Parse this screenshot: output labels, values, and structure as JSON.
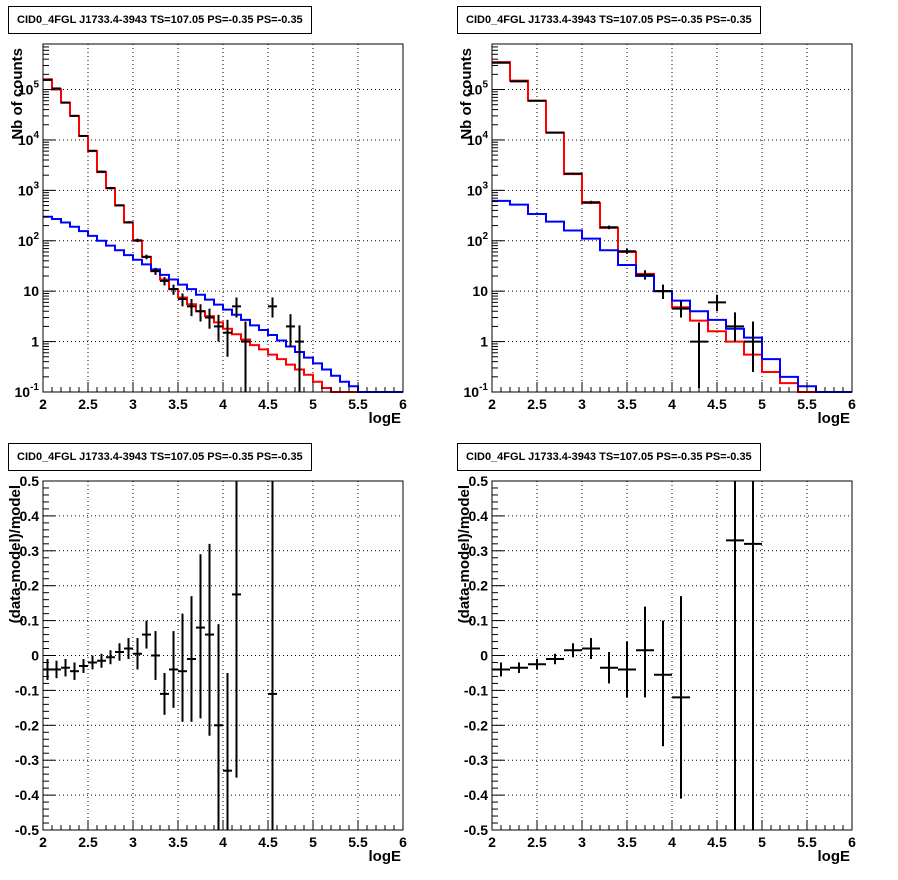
{
  "colors": {
    "total_model": "#ff0000",
    "source_model": "#0000ff",
    "data": "#000000",
    "axis": "#000000",
    "grid": "#000000"
  },
  "chart_data": [
    {
      "type": "line",
      "title": "CID0_4FGL J1733.4-3943 TS=107.05 PS=-0.35 PS=-0.35",
      "xlabel": "logE",
      "ylabel": "Nb of counts",
      "log_y": true,
      "grid": true,
      "xlim": [
        2,
        6
      ],
      "ylim": [
        0.1,
        800000
      ],
      "x_ticks": [
        "2",
        "2.5",
        "3",
        "3.5",
        "4",
        "4.5",
        "5",
        "5.5",
        "6"
      ],
      "y_ticks": [
        "10^-1",
        "1",
        "10",
        "10^2",
        "10^3",
        "10^4",
        "10^5"
      ],
      "bin_edges": [
        2.0,
        2.1,
        2.2,
        2.3,
        2.4,
        2.5,
        2.6,
        2.7,
        2.8,
        2.9,
        3.0,
        3.1,
        3.2,
        3.3,
        3.4,
        3.5,
        3.6,
        3.7,
        3.8,
        3.9,
        4.0,
        4.1,
        4.2,
        4.3,
        4.4,
        4.5,
        4.6,
        4.7,
        4.8,
        4.9,
        5.0,
        5.1,
        5.2,
        5.3,
        5.4,
        5.5,
        5.6,
        5.7,
        5.8,
        5.9,
        6.0
      ],
      "series": [
        {
          "kind": "step",
          "color": "red",
          "values": [
            160000,
            100000,
            55000,
            30000,
            12000,
            6000,
            2300,
            1100,
            500,
            230,
            100,
            48,
            25,
            17,
            11,
            7.5,
            5.5,
            4,
            3.2,
            2.4,
            1.8,
            1.4,
            1.1,
            0.85,
            0.7,
            0.55,
            0.45,
            0.35,
            0.28,
            0.22,
            0.16,
            0.12,
            0.1,
            0.1,
            0.1,
            0.1,
            0.1,
            0.1,
            0.1,
            0.1
          ]
        },
        {
          "kind": "step",
          "color": "blue",
          "values": [
            300,
            270,
            230,
            190,
            155,
            125,
            100,
            80,
            65,
            52,
            42,
            34,
            27,
            21,
            17,
            13.5,
            11,
            8.5,
            6.8,
            5.4,
            4.3,
            3.4,
            2.7,
            2.1,
            1.7,
            1.35,
            1.05,
            0.8,
            0.62,
            0.48,
            0.37,
            0.28,
            0.21,
            0.16,
            0.13,
            0.1,
            0.1,
            0.1,
            0.1,
            0.1
          ]
        },
        {
          "kind": "points",
          "color": "black",
          "x": [
            2.05,
            2.15,
            2.25,
            2.35,
            2.45,
            2.55,
            2.65,
            2.75,
            2.85,
            2.95,
            3.05,
            3.15,
            3.25,
            3.35,
            3.45,
            3.55,
            3.65,
            3.75,
            3.85,
            3.95,
            4.05,
            4.15,
            4.25,
            4.55,
            4.75,
            4.85
          ],
          "y": [
            155000,
            105000,
            55000,
            30000,
            12000,
            6100,
            2350,
            1110,
            505,
            232,
            102,
            48,
            25,
            16,
            11,
            7,
            5,
            4,
            3,
            2,
            1.5,
            5,
            1,
            5,
            2,
            1
          ],
          "y_low": [
            150000,
            100000,
            53000,
            29000,
            11600,
            5900,
            2250,
            1050,
            480,
            220,
            94,
            43,
            21,
            13,
            8.5,
            5,
            3.2,
            2.5,
            1.8,
            1,
            0.5,
            3,
            0.1,
            3,
            0.8,
            0.1
          ],
          "y_high": [
            160000,
            110000,
            57000,
            31000,
            12400,
            6300,
            2450,
            1170,
            530,
            245,
            110,
            53,
            29,
            19,
            13.5,
            9,
            7,
            5.5,
            4.5,
            3.4,
            2.7,
            7.5,
            2.5,
            7.5,
            3.5,
            2.1
          ],
          "half_width": 0.05
        }
      ]
    },
    {
      "type": "line",
      "title": "CID0_4FGL J1733.4-3943 TS=107.05 PS=-0.35 PS=-0.35",
      "xlabel": "logE",
      "ylabel": "Nb of counts",
      "log_y": true,
      "grid": true,
      "xlim": [
        2,
        6
      ],
      "ylim": [
        0.1,
        800000
      ],
      "x_ticks": [
        "2",
        "2.5",
        "3",
        "3.5",
        "4",
        "4.5",
        "5",
        "5.5",
        "6"
      ],
      "y_ticks": [
        "10^-1",
        "1",
        "10",
        "10^2",
        "10^3",
        "10^4",
        "10^5"
      ],
      "bin_edges": [
        2.0,
        2.2,
        2.4,
        2.6,
        2.8,
        3.0,
        3.2,
        3.4,
        3.6,
        3.8,
        4.0,
        4.2,
        4.4,
        4.6,
        4.8,
        5.0,
        5.2,
        5.4,
        5.6,
        5.8,
        6.0
      ],
      "series": [
        {
          "kind": "step",
          "color": "red",
          "values": [
            350000,
            150000,
            60000,
            14000,
            2100,
            560,
            180,
            60,
            22,
            10,
            4.8,
            2.6,
            1.6,
            1.0,
            0.55,
            0.25,
            0.15,
            0.1,
            0.1,
            0.1
          ]
        },
        {
          "kind": "step",
          "color": "blue",
          "values": [
            620,
            520,
            340,
            240,
            160,
            110,
            65,
            33,
            20,
            10,
            6.5,
            4,
            2.7,
            1.8,
            1.2,
            0.45,
            0.2,
            0.13,
            0.1,
            0.1
          ]
        },
        {
          "kind": "points",
          "color": "black",
          "x": [
            2.1,
            2.3,
            2.5,
            2.7,
            2.9,
            3.1,
            3.3,
            3.5,
            3.7,
            3.9,
            4.1,
            4.3,
            4.5,
            4.7,
            4.9
          ],
          "y": [
            340000,
            145000,
            60000,
            14000,
            2150,
            580,
            185,
            62,
            21,
            10,
            4.5,
            1,
            6,
            2,
            1
          ],
          "y_low": [
            335000,
            142000,
            59000,
            13700,
            2050,
            540,
            170,
            55,
            17,
            7,
            3,
            0.12,
            4,
            1,
            0.25
          ],
          "y_high": [
            345000,
            148000,
            61000,
            14300,
            2250,
            620,
            200,
            70,
            26,
            13.5,
            6.5,
            2.4,
            8.5,
            3.8,
            2.5
          ],
          "half_width": 0.1
        }
      ]
    },
    {
      "type": "scatter",
      "title": "CID0_4FGL J1733.4-3943 TS=107.05 PS=-0.35 PS=-0.35",
      "xlabel": "logE",
      "ylabel": "(data-model)/model",
      "log_y": false,
      "grid": true,
      "xlim": [
        2,
        6
      ],
      "ylim": [
        -0.5,
        0.5
      ],
      "x_ticks": [
        "2",
        "2.5",
        "3",
        "3.5",
        "4",
        "4.5",
        "5",
        "5.5",
        "6"
      ],
      "y_ticks": [
        "-0.5",
        "-0.4",
        "-0.3",
        "-0.2",
        "-0.1",
        "0",
        "0.1",
        "0.2",
        "0.3",
        "0.4",
        "0.5"
      ],
      "series": [
        {
          "kind": "points",
          "color": "black",
          "x": [
            2.05,
            2.15,
            2.25,
            2.35,
            2.45,
            2.55,
            2.65,
            2.75,
            2.85,
            2.95,
            3.05,
            3.15,
            3.25,
            3.35,
            3.45,
            3.55,
            3.65,
            3.75,
            3.85,
            3.95,
            4.05,
            4.15,
            4.55
          ],
          "y": [
            -0.04,
            -0.04,
            -0.035,
            -0.045,
            -0.03,
            -0.02,
            -0.015,
            -0.005,
            0.01,
            0.02,
            0.005,
            0.06,
            0.0,
            -0.11,
            -0.04,
            -0.045,
            -0.01,
            0.08,
            0.06,
            -0.2,
            -0.33,
            0.175,
            -0.11
          ],
          "y_low": [
            -0.07,
            -0.065,
            -0.06,
            -0.07,
            -0.05,
            -0.04,
            -0.035,
            -0.025,
            -0.015,
            -0.01,
            -0.04,
            0.02,
            -0.07,
            -0.17,
            -0.15,
            -0.19,
            -0.19,
            -0.18,
            -0.23,
            -0.5,
            -0.5,
            -0.35,
            -0.5
          ],
          "y_high": [
            -0.01,
            -0.015,
            -0.01,
            -0.02,
            -0.01,
            0.0,
            0.005,
            0.015,
            0.035,
            0.05,
            0.05,
            0.1,
            0.07,
            -0.05,
            0.07,
            0.12,
            0.17,
            0.29,
            0.32,
            0.09,
            -0.05,
            0.5,
            0.5
          ],
          "half_width": 0.05
        }
      ]
    },
    {
      "type": "scatter",
      "title": "CID0_4FGL J1733.4-3943 TS=107.05 PS=-0.35 PS=-0.35",
      "xlabel": "logE",
      "ylabel": "(data-model)/model",
      "log_y": false,
      "grid": true,
      "xlim": [
        2,
        6
      ],
      "ylim": [
        -0.5,
        0.5
      ],
      "x_ticks": [
        "2",
        "2.5",
        "3",
        "3.5",
        "4",
        "4.5",
        "5",
        "5.5",
        "6"
      ],
      "y_ticks": [
        "-0.5",
        "-0.4",
        "-0.3",
        "-0.2",
        "-0.1",
        "0",
        "0.1",
        "0.2",
        "0.3",
        "0.4",
        "0.5"
      ],
      "series": [
        {
          "kind": "points",
          "color": "black",
          "x": [
            2.1,
            2.3,
            2.5,
            2.7,
            2.9,
            3.1,
            3.3,
            3.5,
            3.7,
            3.9,
            4.1,
            4.7,
            4.9
          ],
          "y": [
            -0.04,
            -0.035,
            -0.025,
            -0.01,
            0.015,
            0.02,
            -0.035,
            -0.04,
            0.015,
            -0.055,
            -0.12,
            0.33,
            0.32
          ],
          "y_low": [
            -0.06,
            -0.05,
            -0.04,
            -0.025,
            -0.005,
            -0.01,
            -0.08,
            -0.12,
            -0.12,
            -0.26,
            -0.41,
            -0.5,
            -0.5
          ],
          "y_high": [
            -0.02,
            -0.02,
            -0.01,
            0.005,
            0.035,
            0.05,
            0.01,
            0.04,
            0.14,
            0.1,
            0.17,
            0.5,
            0.5
          ],
          "half_width": 0.1
        }
      ]
    }
  ]
}
